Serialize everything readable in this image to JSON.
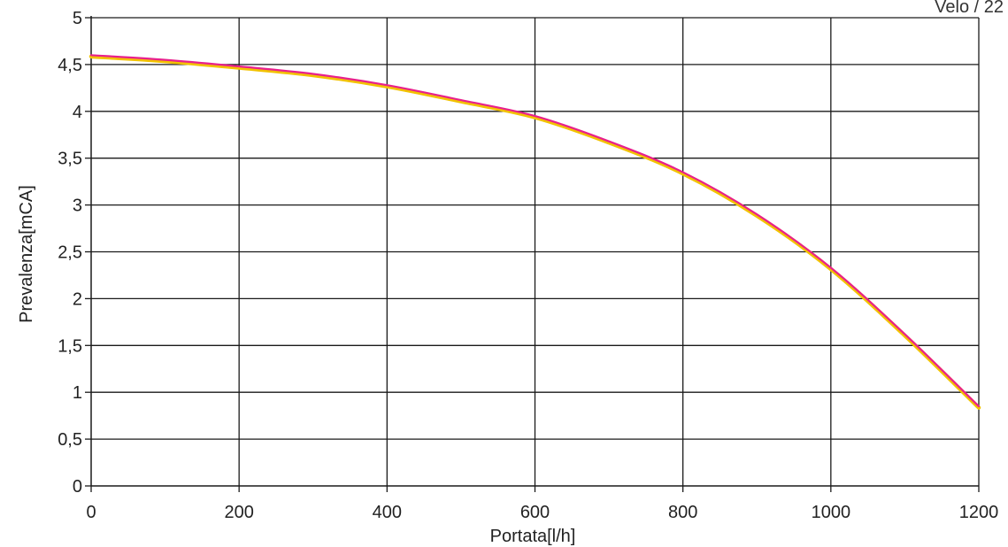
{
  "corner_text": "Velo / 22",
  "chart_data": {
    "type": "line",
    "xlabel": "Portata[l/h]",
    "ylabel": "Prevalenza[mCA]",
    "xlim": [
      0,
      1200
    ],
    "ylim": [
      0,
      5
    ],
    "x_ticks": [
      0,
      200,
      400,
      600,
      800,
      1000,
      1200
    ],
    "x_tick_labels": [
      "0",
      "200",
      "400",
      "600",
      "800",
      "1000",
      "1200"
    ],
    "y_ticks": [
      0,
      0.5,
      1,
      1.5,
      2,
      2.5,
      3,
      3.5,
      4,
      4.5,
      5
    ],
    "y_tick_labels": [
      "0",
      "0,5",
      "1",
      "1,5",
      "2",
      "2,5",
      "3",
      "3,5",
      "4",
      "4,5",
      "5"
    ],
    "grid": true,
    "series": [
      {
        "color": "#e8208c",
        "highlight": "#f2c200",
        "x": [
          0,
          100,
          200,
          300,
          400,
          500,
          600,
          700,
          800,
          900,
          1000,
          1100,
          1200
        ],
        "y": [
          4.6,
          4.55,
          4.48,
          4.4,
          4.28,
          4.12,
          3.95,
          3.68,
          3.35,
          2.9,
          2.33,
          1.62,
          0.85
        ]
      }
    ]
  }
}
